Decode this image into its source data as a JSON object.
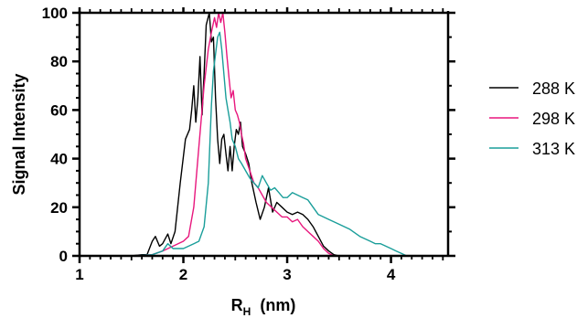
{
  "chart_data": {
    "type": "line",
    "xlabel_main": "R",
    "xlabel_sub": "H",
    "xlabel_unit": "(nm)",
    "ylabel": "Signal  Intensity",
    "xlim": [
      1,
      4.55
    ],
    "ylim": [
      0,
      100
    ],
    "xticks": [
      1,
      2,
      3,
      4
    ],
    "yticks": [
      0,
      20,
      40,
      60,
      80,
      100
    ],
    "legend_position": "right",
    "series": [
      {
        "name": "288 K",
        "color": "#000000",
        "points": [
          [
            1.5,
            0
          ],
          [
            1.6,
            0.5
          ],
          [
            1.65,
            0.5
          ],
          [
            1.7,
            6
          ],
          [
            1.73,
            8
          ],
          [
            1.77,
            4
          ],
          [
            1.8,
            5
          ],
          [
            1.85,
            9
          ],
          [
            1.88,
            5
          ],
          [
            1.92,
            10
          ],
          [
            1.97,
            30
          ],
          [
            2.02,
            48
          ],
          [
            2.06,
            52
          ],
          [
            2.08,
            60
          ],
          [
            2.1,
            70
          ],
          [
            2.12,
            55
          ],
          [
            2.14,
            65
          ],
          [
            2.16,
            82
          ],
          [
            2.18,
            58
          ],
          [
            2.2,
            75
          ],
          [
            2.22,
            95
          ],
          [
            2.25,
            100
          ],
          [
            2.27,
            88
          ],
          [
            2.29,
            90
          ],
          [
            2.31,
            65
          ],
          [
            2.33,
            48
          ],
          [
            2.35,
            38
          ],
          [
            2.37,
            48
          ],
          [
            2.39,
            50
          ],
          [
            2.41,
            42
          ],
          [
            2.43,
            35
          ],
          [
            2.45,
            45
          ],
          [
            2.47,
            35
          ],
          [
            2.49,
            45
          ],
          [
            2.51,
            52
          ],
          [
            2.53,
            50
          ],
          [
            2.55,
            55
          ],
          [
            2.57,
            45
          ],
          [
            2.6,
            42
          ],
          [
            2.63,
            38
          ],
          [
            2.66,
            30
          ],
          [
            2.7,
            22
          ],
          [
            2.74,
            15
          ],
          [
            2.78,
            20
          ],
          [
            2.82,
            28
          ],
          [
            2.86,
            18
          ],
          [
            2.9,
            22
          ],
          [
            2.95,
            20
          ],
          [
            3.0,
            18
          ],
          [
            3.05,
            17
          ],
          [
            3.1,
            18
          ],
          [
            3.15,
            17
          ],
          [
            3.2,
            15
          ],
          [
            3.25,
            12
          ],
          [
            3.3,
            8
          ],
          [
            3.35,
            4
          ],
          [
            3.4,
            2
          ],
          [
            3.45,
            0.5
          ],
          [
            3.5,
            0
          ]
        ]
      },
      {
        "name": "298 K",
        "color": "#e8177d",
        "points": [
          [
            1.5,
            0
          ],
          [
            1.7,
            0.5
          ],
          [
            1.8,
            2
          ],
          [
            1.9,
            4
          ],
          [
            2.0,
            6
          ],
          [
            2.05,
            8
          ],
          [
            2.1,
            20
          ],
          [
            2.15,
            45
          ],
          [
            2.2,
            70
          ],
          [
            2.24,
            85
          ],
          [
            2.27,
            92
          ],
          [
            2.3,
            98
          ],
          [
            2.32,
            94
          ],
          [
            2.34,
            100
          ],
          [
            2.36,
            96
          ],
          [
            2.38,
            100
          ],
          [
            2.4,
            92
          ],
          [
            2.42,
            82
          ],
          [
            2.44,
            73
          ],
          [
            2.46,
            65
          ],
          [
            2.48,
            68
          ],
          [
            2.5,
            60
          ],
          [
            2.52,
            58
          ],
          [
            2.54,
            55
          ],
          [
            2.56,
            50
          ],
          [
            2.58,
            46
          ],
          [
            2.6,
            40
          ],
          [
            2.64,
            35
          ],
          [
            2.68,
            30
          ],
          [
            2.72,
            28
          ],
          [
            2.76,
            25
          ],
          [
            2.8,
            22
          ],
          [
            2.85,
            20
          ],
          [
            2.9,
            18
          ],
          [
            2.95,
            16
          ],
          [
            3.0,
            16
          ],
          [
            3.05,
            14
          ],
          [
            3.1,
            15
          ],
          [
            3.15,
            12
          ],
          [
            3.2,
            10
          ],
          [
            3.25,
            8
          ],
          [
            3.3,
            6
          ],
          [
            3.35,
            3
          ],
          [
            3.4,
            1
          ],
          [
            3.45,
            0
          ]
        ]
      },
      {
        "name": "313 K",
        "color": "#1a9e9a",
        "points": [
          [
            1.5,
            0
          ],
          [
            1.7,
            0.5
          ],
          [
            1.8,
            2
          ],
          [
            1.85,
            5
          ],
          [
            1.9,
            3
          ],
          [
            2.0,
            3
          ],
          [
            2.05,
            4
          ],
          [
            2.1,
            5
          ],
          [
            2.15,
            6
          ],
          [
            2.2,
            12
          ],
          [
            2.24,
            30
          ],
          [
            2.27,
            62
          ],
          [
            2.29,
            76
          ],
          [
            2.31,
            83
          ],
          [
            2.33,
            90
          ],
          [
            2.35,
            92
          ],
          [
            2.37,
            85
          ],
          [
            2.39,
            75
          ],
          [
            2.41,
            65
          ],
          [
            2.43,
            60
          ],
          [
            2.45,
            55
          ],
          [
            2.47,
            48
          ],
          [
            2.5,
            45
          ],
          [
            2.53,
            40
          ],
          [
            2.56,
            38
          ],
          [
            2.6,
            35
          ],
          [
            2.64,
            32
          ],
          [
            2.68,
            30
          ],
          [
            2.72,
            28
          ],
          [
            2.76,
            33
          ],
          [
            2.8,
            30
          ],
          [
            2.84,
            27
          ],
          [
            2.88,
            28
          ],
          [
            2.92,
            26
          ],
          [
            2.96,
            24
          ],
          [
            3.0,
            24
          ],
          [
            3.05,
            26
          ],
          [
            3.1,
            25
          ],
          [
            3.15,
            24
          ],
          [
            3.2,
            23
          ],
          [
            3.25,
            20
          ],
          [
            3.3,
            17
          ],
          [
            3.4,
            15
          ],
          [
            3.5,
            13
          ],
          [
            3.6,
            11
          ],
          [
            3.7,
            8
          ],
          [
            3.8,
            6
          ],
          [
            3.85,
            5
          ],
          [
            3.9,
            5
          ],
          [
            3.95,
            4
          ],
          [
            4.0,
            3
          ],
          [
            4.05,
            2
          ],
          [
            4.1,
            1
          ],
          [
            4.15,
            0
          ]
        ]
      }
    ]
  }
}
